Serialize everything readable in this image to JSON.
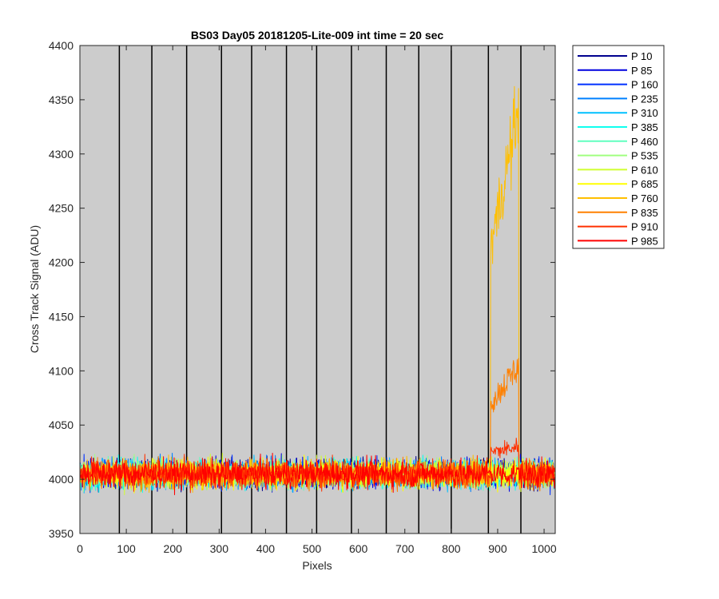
{
  "chart_data": {
    "type": "line",
    "title": "BS03 Day05 20181205-Lite-009 int time = 20 sec",
    "xlabel": "Pixels",
    "ylabel": "Cross Track Signal (ADU)",
    "xlim": [
      0,
      1024
    ],
    "ylim": [
      3950,
      4400
    ],
    "xticks": [
      0,
      100,
      200,
      300,
      400,
      500,
      600,
      700,
      800,
      900,
      1000
    ],
    "yticks": [
      3950,
      4000,
      4050,
      4100,
      4150,
      4200,
      4250,
      4300,
      4350,
      4400
    ],
    "grid": false,
    "background": "#cccccc",
    "legend_position": "outside-top-right",
    "column_boundaries_px": [
      85,
      155,
      230,
      305,
      370,
      445,
      510,
      585,
      660,
      730,
      800,
      880,
      950
    ],
    "baseline_level": 4005,
    "baseline_noise_range": [
      3970,
      4050
    ],
    "series": [
      {
        "name": "P 10",
        "color": "#00008f",
        "level": 4005
      },
      {
        "name": "P 85",
        "color": "#0000df",
        "level": 4005
      },
      {
        "name": "P 160",
        "color": "#0030ff",
        "level": 4005
      },
      {
        "name": "P 235",
        "color": "#0080ff",
        "level": 4005
      },
      {
        "name": "P 310",
        "color": "#00c0ff",
        "level": 4005
      },
      {
        "name": "P 385",
        "color": "#10ffef",
        "level": 4005
      },
      {
        "name": "P 460",
        "color": "#60ffbf",
        "level": 4005
      },
      {
        "name": "P 535",
        "color": "#a0ff80",
        "level": 4005
      },
      {
        "name": "P 610",
        "color": "#d0ff30",
        "level": 4005
      },
      {
        "name": "P 685",
        "color": "#ffff00",
        "level": 4005
      },
      {
        "name": "P 760",
        "color": "#ffbf00",
        "level": 4005,
        "bump": {
          "x_range": [
            885,
            945
          ],
          "level_start": 4215,
          "level_end": 4340
        }
      },
      {
        "name": "P 835",
        "color": "#ff8000",
        "level": 4005,
        "bump": {
          "x_range": [
            885,
            945
          ],
          "level_start": 4070,
          "level_end": 4105
        }
      },
      {
        "name": "P 910",
        "color": "#ff3000",
        "level": 4005,
        "bump": {
          "x_range": [
            885,
            945
          ],
          "level_start": 4025,
          "level_end": 4030
        }
      },
      {
        "name": "P 985",
        "color": "#ff0000",
        "level": 4005
      }
    ]
  }
}
